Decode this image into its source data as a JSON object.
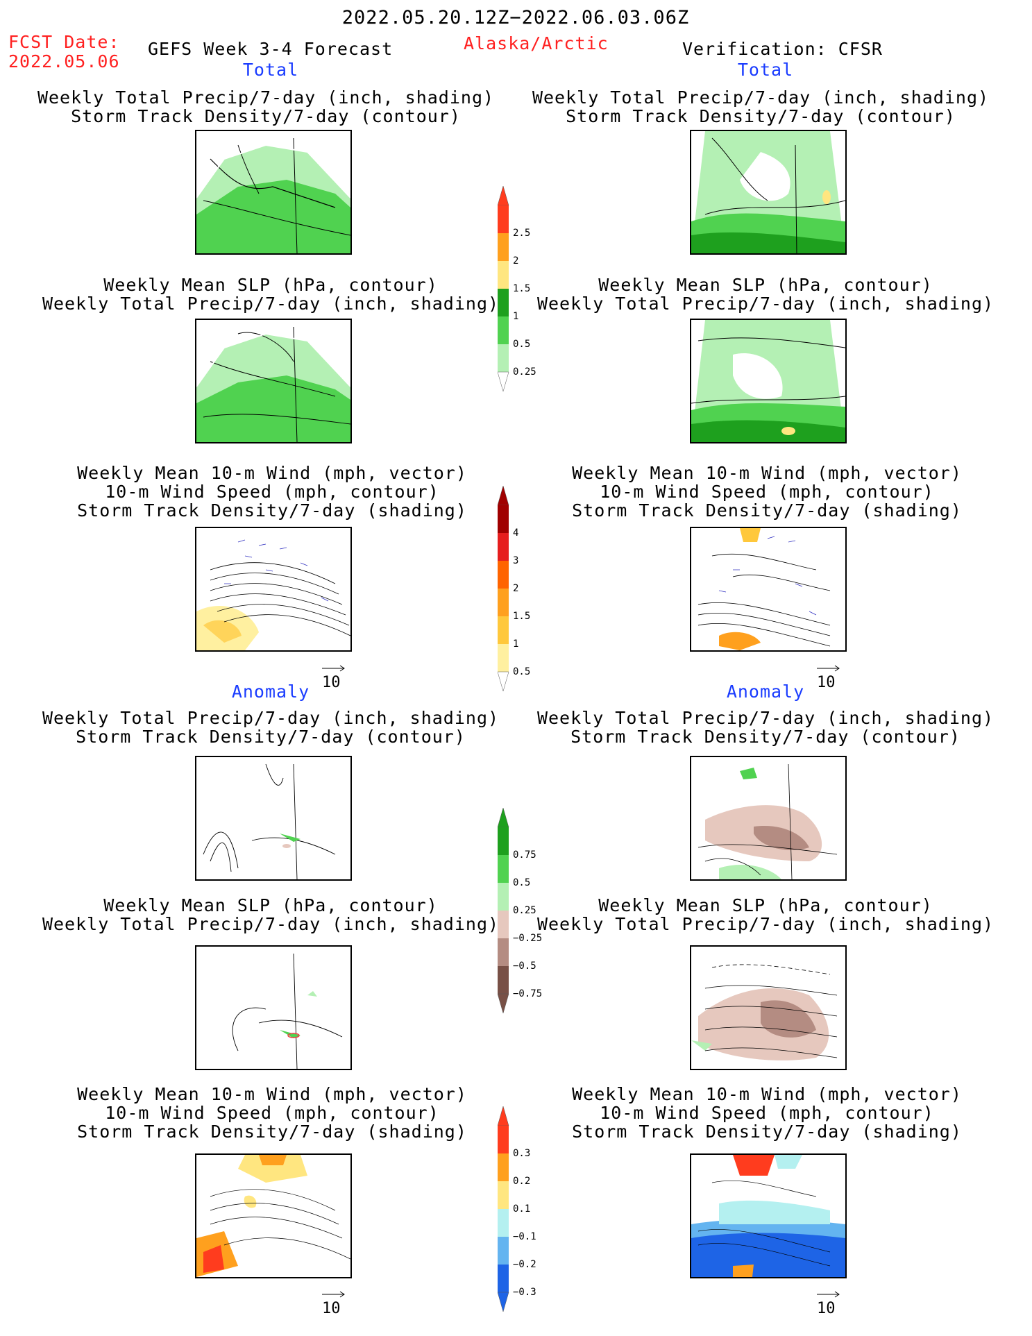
{
  "header": {
    "date_range": "2022.05.20.12Z−2022.06.03.06Z",
    "fcst_date_label": "FCST Date:",
    "fcst_date_value": "2022.05.06",
    "forecast_title": "GEFS Week 3-4 Forecast",
    "region": "Alaska/Arctic",
    "verification": "Verification: CFSR"
  },
  "sections": {
    "total_label": "Total",
    "anomaly_label": "Anomaly"
  },
  "panel_titles": {
    "precip_track": [
      "Weekly Total Precip/7-day (inch, shading)",
      "Storm Track Density/7-day (contour)"
    ],
    "slp_precip": [
      "Weekly Mean SLP (hPa, contour)",
      "Weekly Total Precip/7-day (inch, shading)"
    ],
    "wind_track": [
      "Weekly Mean 10-m Wind (mph, vector)",
      "10-m Wind Speed (mph, contour)",
      "Storm Track Density/7-day (shading)"
    ]
  },
  "vector_ref": "10",
  "colorbars": {
    "total_precip": {
      "labels": [
        "2.5",
        "2",
        "1.5",
        "1",
        "0.5",
        "0.25"
      ],
      "colors": [
        "#ff3c1e",
        "#ffa01e",
        "#ffe680",
        "#1ea01e",
        "#50d250",
        "#b4f0b4"
      ]
    },
    "total_track": {
      "labels": [
        "4",
        "3",
        "2",
        "1.5",
        "1",
        "0.5"
      ],
      "colors": [
        "#a00000",
        "#e61e1e",
        "#ff6400",
        "#ffa01e",
        "#ffc83c",
        "#fff0a0"
      ]
    },
    "anom_precip": {
      "labels": [
        "0.75",
        "0.5",
        "0.25",
        "−0.25",
        "−0.5",
        "−0.75"
      ],
      "colors": [
        "#1ea01e",
        "#50d250",
        "#b4f0b4",
        "#e6c8be",
        "#b48c82",
        "#785046"
      ]
    },
    "anom_track": {
      "labels": [
        "0.3",
        "0.2",
        "0.1",
        "−0.1",
        "−0.2",
        "−0.3"
      ],
      "colors": [
        "#ff3c1e",
        "#ffa01e",
        "#ffe680",
        "#b4f0f0",
        "#64b4f0",
        "#1e64e6"
      ]
    }
  }
}
